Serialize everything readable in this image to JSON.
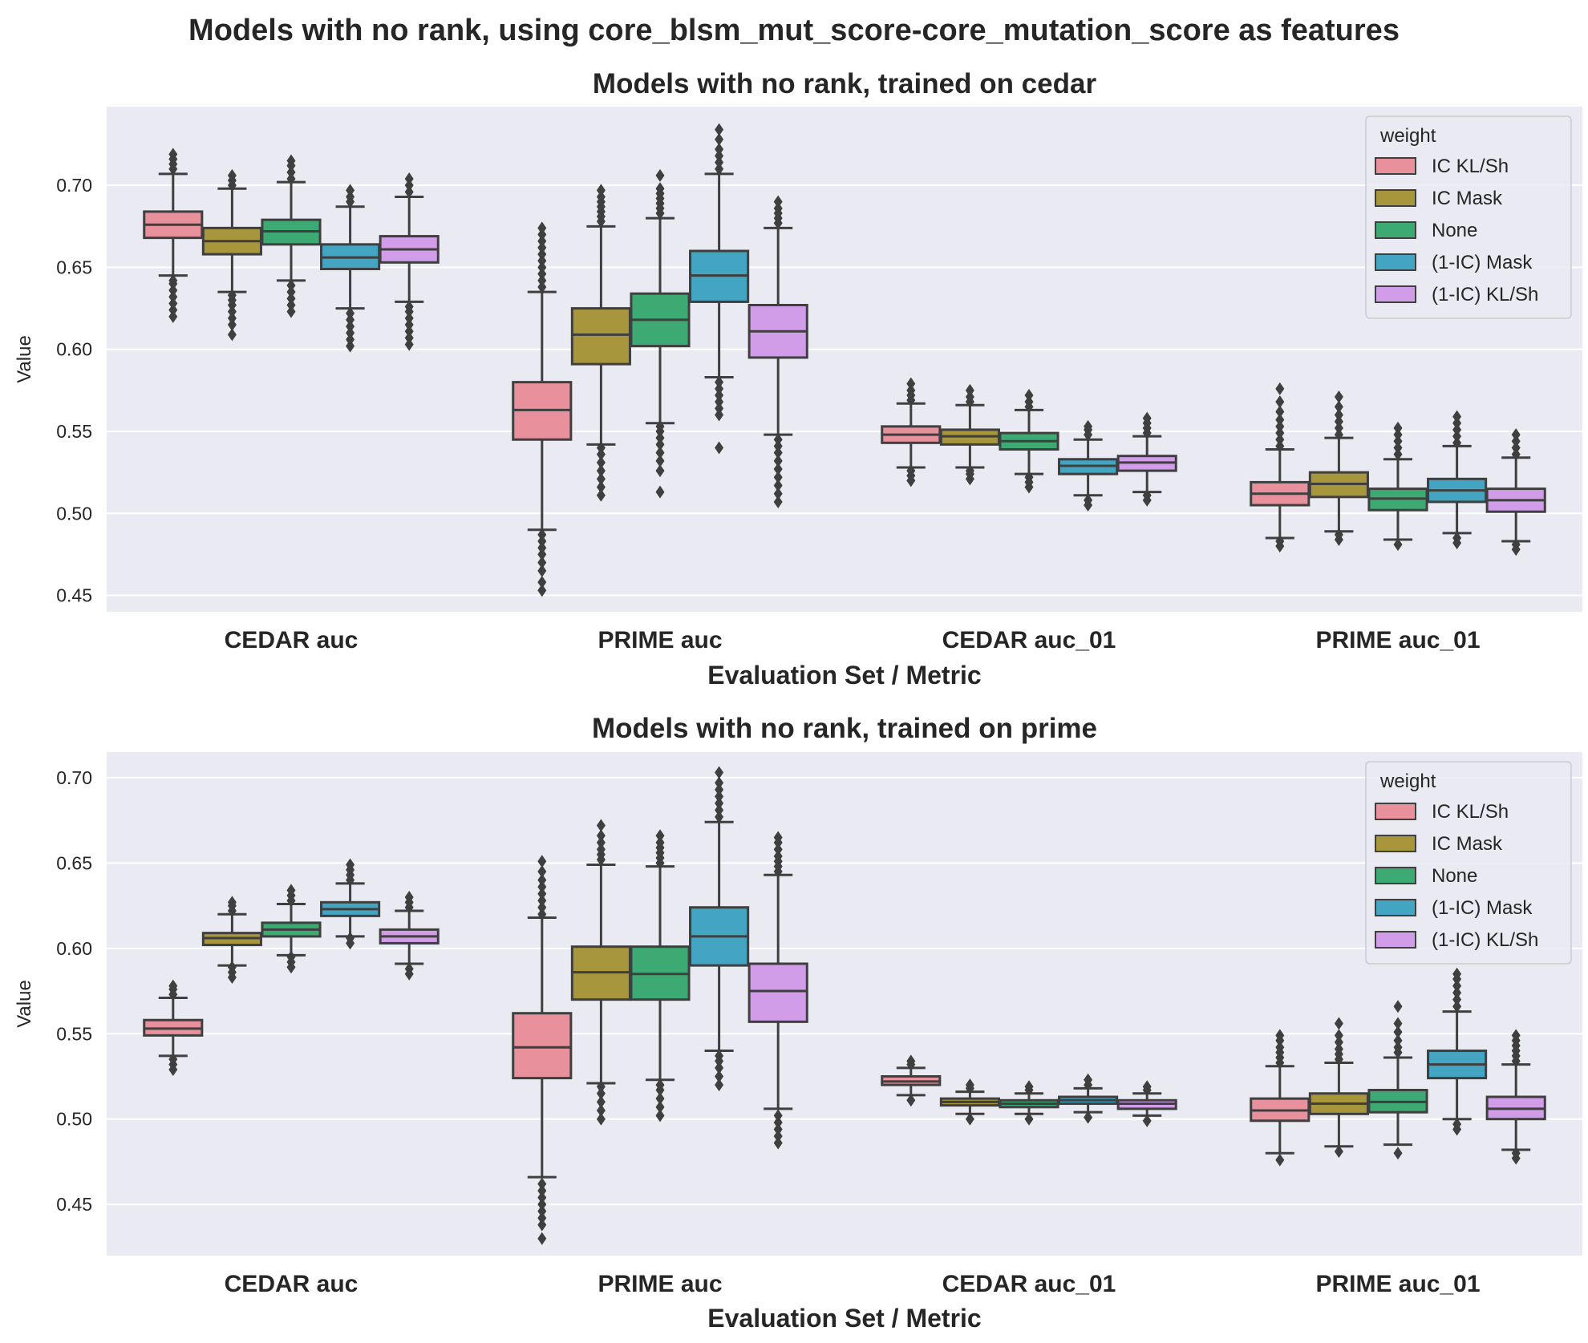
{
  "suptitle": "Models with no rank, using core_blsm_mut_score-core_mutation_score as features",
  "legend": {
    "title": "weight",
    "labels": [
      "IC KL/Sh",
      "IC Mask",
      "None",
      "(1-IC) Mask",
      "(1-IC) KL/Sh"
    ],
    "colors": [
      "#E8909C",
      "#A8963C",
      "#3DAA74",
      "#44A5C2",
      "#D19CE8"
    ]
  },
  "chart_data": [
    {
      "type": "box",
      "title": "Models with no rank, trained on cedar",
      "xlabel": "Evaluation Set / Metric",
      "ylabel": "Value",
      "categories": [
        "CEDAR auc",
        "PRIME auc",
        "CEDAR auc_01",
        "PRIME auc_01"
      ],
      "hue": [
        "IC KL/Sh",
        "IC Mask",
        "None",
        "(1-IC) Mask",
        "(1-IC) KL/Sh"
      ],
      "ylim": [
        0.44,
        0.748
      ],
      "yticks": [
        "0.45",
        "0.50",
        "0.55",
        "0.60",
        "0.65",
        "0.70"
      ],
      "legend_position": "upper right",
      "grid": true,
      "boxes": [
        [
          {
            "q1": 0.668,
            "median": 0.676,
            "q3": 0.684,
            "whislo": 0.645,
            "whishi": 0.707,
            "fliers": [
              0.62,
              0.624,
              0.628,
              0.632,
              0.636,
              0.64,
              0.642,
              0.71,
              0.713,
              0.716,
              0.719
            ]
          },
          {
            "q1": 0.658,
            "median": 0.666,
            "q3": 0.674,
            "whislo": 0.635,
            "whishi": 0.698,
            "fliers": [
              0.609,
              0.615,
              0.619,
              0.623,
              0.627,
              0.63,
              0.633,
              0.7,
              0.703,
              0.706
            ]
          },
          {
            "q1": 0.664,
            "median": 0.672,
            "q3": 0.679,
            "whislo": 0.642,
            "whishi": 0.702,
            "fliers": [
              0.623,
              0.627,
              0.631,
              0.635,
              0.639,
              0.704,
              0.708,
              0.712,
              0.715
            ]
          },
          {
            "q1": 0.649,
            "median": 0.656,
            "q3": 0.664,
            "whislo": 0.625,
            "whishi": 0.687,
            "fliers": [
              0.602,
              0.606,
              0.61,
              0.614,
              0.618,
              0.622,
              0.69,
              0.693,
              0.697
            ]
          },
          {
            "q1": 0.653,
            "median": 0.661,
            "q3": 0.669,
            "whislo": 0.629,
            "whishi": 0.693,
            "fliers": [
              0.603,
              0.607,
              0.611,
              0.615,
              0.619,
              0.623,
              0.626,
              0.696,
              0.7,
              0.704
            ]
          }
        ],
        [
          {
            "q1": 0.545,
            "median": 0.563,
            "q3": 0.58,
            "whislo": 0.49,
            "whishi": 0.635,
            "fliers": [
              0.453,
              0.458,
              0.465,
              0.47,
              0.475,
              0.479,
              0.483,
              0.487,
              0.638,
              0.642,
              0.646,
              0.65,
              0.654,
              0.658,
              0.662,
              0.666,
              0.67,
              0.674
            ]
          },
          {
            "q1": 0.591,
            "median": 0.609,
            "q3": 0.625,
            "whislo": 0.542,
            "whishi": 0.675,
            "fliers": [
              0.511,
              0.516,
              0.521,
              0.526,
              0.531,
              0.536,
              0.54,
              0.678,
              0.681,
              0.684,
              0.687,
              0.69,
              0.693,
              0.697
            ]
          },
          {
            "q1": 0.602,
            "median": 0.618,
            "q3": 0.634,
            "whislo": 0.555,
            "whishi": 0.68,
            "fliers": [
              0.513,
              0.526,
              0.532,
              0.537,
              0.542,
              0.546,
              0.55,
              0.553,
              0.683,
              0.686,
              0.689,
              0.692,
              0.695,
              0.698,
              0.706
            ]
          },
          {
            "q1": 0.629,
            "median": 0.645,
            "q3": 0.66,
            "whislo": 0.583,
            "whishi": 0.707,
            "fliers": [
              0.54,
              0.56,
              0.564,
              0.568,
              0.572,
              0.576,
              0.58,
              0.71,
              0.714,
              0.718,
              0.722,
              0.728,
              0.734
            ]
          },
          {
            "q1": 0.595,
            "median": 0.611,
            "q3": 0.627,
            "whislo": 0.548,
            "whishi": 0.674,
            "fliers": [
              0.507,
              0.512,
              0.517,
              0.522,
              0.527,
              0.532,
              0.537,
              0.541,
              0.545,
              0.677,
              0.68,
              0.683,
              0.686,
              0.69
            ]
          }
        ],
        [
          {
            "q1": 0.543,
            "median": 0.548,
            "q3": 0.553,
            "whislo": 0.528,
            "whishi": 0.567,
            "fliers": [
              0.52,
              0.523,
              0.526,
              0.569,
              0.572,
              0.575,
              0.579
            ]
          },
          {
            "q1": 0.542,
            "median": 0.547,
            "q3": 0.551,
            "whislo": 0.528,
            "whishi": 0.566,
            "fliers": [
              0.521,
              0.524,
              0.526,
              0.568,
              0.571,
              0.575
            ]
          },
          {
            "q1": 0.539,
            "median": 0.544,
            "q3": 0.549,
            "whislo": 0.524,
            "whishi": 0.563,
            "fliers": [
              0.516,
              0.519,
              0.522,
              0.565,
              0.568,
              0.572
            ]
          },
          {
            "q1": 0.524,
            "median": 0.529,
            "q3": 0.533,
            "whislo": 0.511,
            "whishi": 0.545,
            "fliers": [
              0.505,
              0.508,
              0.548,
              0.551,
              0.553
            ]
          },
          {
            "q1": 0.526,
            "median": 0.531,
            "q3": 0.535,
            "whislo": 0.513,
            "whishi": 0.547,
            "fliers": [
              0.508,
              0.511,
              0.549,
              0.552,
              0.555,
              0.558
            ]
          }
        ],
        [
          {
            "q1": 0.505,
            "median": 0.512,
            "q3": 0.519,
            "whislo": 0.485,
            "whishi": 0.539,
            "fliers": [
              0.48,
              0.483,
              0.541,
              0.545,
              0.549,
              0.553,
              0.557,
              0.562,
              0.568,
              0.576
            ]
          },
          {
            "q1": 0.51,
            "median": 0.518,
            "q3": 0.525,
            "whislo": 0.489,
            "whishi": 0.546,
            "fliers": [
              0.484,
              0.487,
              0.548,
              0.552,
              0.556,
              0.56,
              0.565,
              0.571
            ]
          },
          {
            "q1": 0.502,
            "median": 0.509,
            "q3": 0.515,
            "whislo": 0.484,
            "whishi": 0.533,
            "fliers": [
              0.481,
              0.536,
              0.54,
              0.544,
              0.548,
              0.552
            ]
          },
          {
            "q1": 0.507,
            "median": 0.514,
            "q3": 0.521,
            "whislo": 0.488,
            "whishi": 0.541,
            "fliers": [
              0.482,
              0.485,
              0.543,
              0.547,
              0.551,
              0.555,
              0.559
            ]
          },
          {
            "q1": 0.501,
            "median": 0.508,
            "q3": 0.515,
            "whislo": 0.483,
            "whishi": 0.534,
            "fliers": [
              0.478,
              0.481,
              0.536,
              0.54,
              0.544,
              0.548
            ]
          }
        ]
      ]
    },
    {
      "type": "box",
      "title": "Models with no rank, trained on prime",
      "xlabel": "Evaluation Set / Metric",
      "ylabel": "Value",
      "categories": [
        "CEDAR auc",
        "PRIME auc",
        "CEDAR auc_01",
        "PRIME auc_01"
      ],
      "hue": [
        "IC KL/Sh",
        "IC Mask",
        "None",
        "(1-IC) Mask",
        "(1-IC) KL/Sh"
      ],
      "ylim": [
        0.42,
        0.715
      ],
      "yticks": [
        "0.45",
        "0.50",
        "0.55",
        "0.60",
        "0.65",
        "0.70"
      ],
      "legend_position": "upper right",
      "grid": true,
      "boxes": [
        [
          {
            "q1": 0.549,
            "median": 0.553,
            "q3": 0.558,
            "whislo": 0.537,
            "whishi": 0.571,
            "fliers": [
              0.529,
              0.532,
              0.535,
              0.573,
              0.576,
              0.578
            ]
          },
          {
            "q1": 0.602,
            "median": 0.606,
            "q3": 0.609,
            "whislo": 0.59,
            "whishi": 0.62,
            "fliers": [
              0.583,
              0.586,
              0.589,
              0.622,
              0.625,
              0.627
            ]
          },
          {
            "q1": 0.607,
            "median": 0.611,
            "q3": 0.615,
            "whislo": 0.596,
            "whishi": 0.626,
            "fliers": [
              0.589,
              0.592,
              0.595,
              0.628,
              0.631,
              0.634
            ]
          },
          {
            "q1": 0.619,
            "median": 0.623,
            "q3": 0.627,
            "whislo": 0.607,
            "whishi": 0.638,
            "fliers": [
              0.603,
              0.606,
              0.64,
              0.643,
              0.646,
              0.649
            ]
          },
          {
            "q1": 0.603,
            "median": 0.607,
            "q3": 0.611,
            "whislo": 0.591,
            "whishi": 0.622,
            "fliers": [
              0.585,
              0.588,
              0.624,
              0.627,
              0.63
            ]
          }
        ],
        [
          {
            "q1": 0.524,
            "median": 0.542,
            "q3": 0.562,
            "whislo": 0.466,
            "whishi": 0.618,
            "fliers": [
              0.43,
              0.438,
              0.442,
              0.446,
              0.45,
              0.454,
              0.458,
              0.462,
              0.62,
              0.624,
              0.628,
              0.632,
              0.636,
              0.64,
              0.645,
              0.651
            ]
          },
          {
            "q1": 0.57,
            "median": 0.586,
            "q3": 0.601,
            "whislo": 0.521,
            "whishi": 0.649,
            "fliers": [
              0.5,
              0.505,
              0.51,
              0.515,
              0.519,
              0.652,
              0.655,
              0.658,
              0.662,
              0.666,
              0.672
            ]
          },
          {
            "q1": 0.57,
            "median": 0.585,
            "q3": 0.601,
            "whislo": 0.523,
            "whishi": 0.648,
            "fliers": [
              0.502,
              0.507,
              0.512,
              0.517,
              0.52,
              0.65,
              0.653,
              0.656,
              0.659,
              0.662,
              0.666
            ]
          },
          {
            "q1": 0.59,
            "median": 0.607,
            "q3": 0.624,
            "whislo": 0.54,
            "whishi": 0.674,
            "fliers": [
              0.52,
              0.525,
              0.53,
              0.534,
              0.537,
              0.677,
              0.681,
              0.685,
              0.689,
              0.693,
              0.697,
              0.703
            ]
          },
          {
            "q1": 0.557,
            "median": 0.575,
            "q3": 0.591,
            "whislo": 0.506,
            "whishi": 0.643,
            "fliers": [
              0.486,
              0.49,
              0.494,
              0.498,
              0.502,
              0.645,
              0.648,
              0.651,
              0.654,
              0.658,
              0.662,
              0.665
            ]
          }
        ],
        [
          {
            "q1": 0.52,
            "median": 0.522,
            "q3": 0.525,
            "whislo": 0.514,
            "whishi": 0.53,
            "fliers": [
              0.511,
              0.532,
              0.534
            ]
          },
          {
            "q1": 0.508,
            "median": 0.51,
            "q3": 0.512,
            "whislo": 0.503,
            "whishi": 0.516,
            "fliers": [
              0.5,
              0.518,
              0.52
            ]
          },
          {
            "q1": 0.507,
            "median": 0.509,
            "q3": 0.511,
            "whislo": 0.503,
            "whishi": 0.515,
            "fliers": [
              0.5,
              0.517,
              0.519
            ]
          },
          {
            "q1": 0.509,
            "median": 0.511,
            "q3": 0.513,
            "whislo": 0.504,
            "whishi": 0.518,
            "fliers": [
              0.501,
              0.52,
              0.523
            ]
          },
          {
            "q1": 0.506,
            "median": 0.509,
            "q3": 0.511,
            "whislo": 0.502,
            "whishi": 0.515,
            "fliers": [
              0.499,
              0.517,
              0.519
            ]
          }
        ],
        [
          {
            "q1": 0.499,
            "median": 0.505,
            "q3": 0.512,
            "whislo": 0.48,
            "whishi": 0.531,
            "fliers": [
              0.476,
              0.533,
              0.536,
              0.539,
              0.542,
              0.546,
              0.549
            ]
          },
          {
            "q1": 0.503,
            "median": 0.509,
            "q3": 0.515,
            "whislo": 0.484,
            "whishi": 0.533,
            "fliers": [
              0.481,
              0.535,
              0.538,
              0.541,
              0.545,
              0.549,
              0.556
            ]
          },
          {
            "q1": 0.504,
            "median": 0.51,
            "q3": 0.517,
            "whislo": 0.485,
            "whishi": 0.536,
            "fliers": [
              0.48,
              0.539,
              0.542,
              0.546,
              0.551,
              0.556,
              0.566
            ]
          },
          {
            "q1": 0.524,
            "median": 0.532,
            "q3": 0.54,
            "whislo": 0.5,
            "whishi": 0.563,
            "fliers": [
              0.494,
              0.497,
              0.566,
              0.57,
              0.574,
              0.578,
              0.582,
              0.585
            ]
          },
          {
            "q1": 0.5,
            "median": 0.506,
            "q3": 0.513,
            "whislo": 0.482,
            "whishi": 0.532,
            "fliers": [
              0.477,
              0.48,
              0.534,
              0.537,
              0.54,
              0.543,
              0.546,
              0.549
            ]
          }
        ]
      ]
    }
  ]
}
